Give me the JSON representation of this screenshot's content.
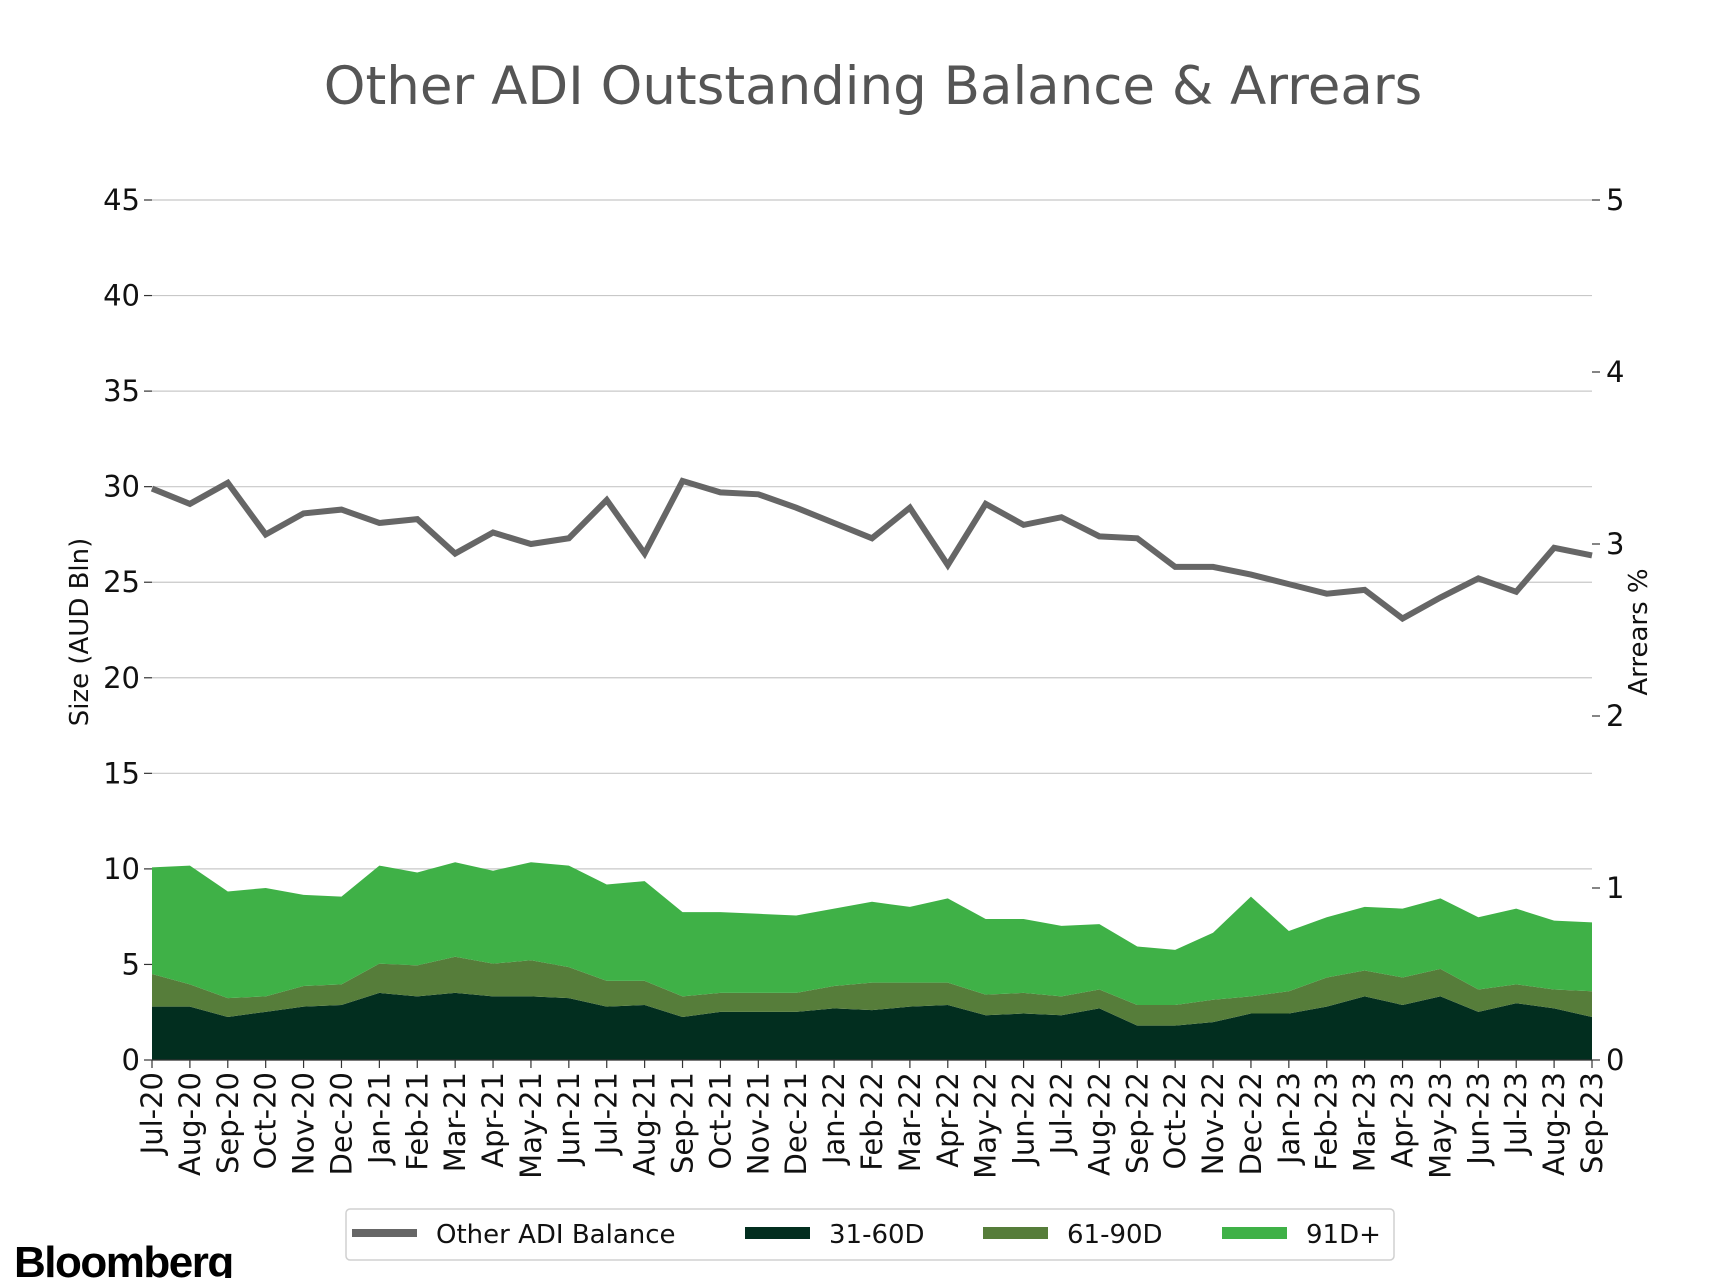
{
  "chart_data": {
    "type": "area",
    "title": "Other ADI Outstanding Balance & Arrears",
    "ylabel_left": "Size (AUD Bln)",
    "ylabel_right": "Arrears %",
    "ylim_left": [
      0,
      45
    ],
    "ylim_right": [
      0,
      5
    ],
    "yticks_left": [
      "0",
      "5",
      "10",
      "15",
      "20",
      "25",
      "30",
      "35",
      "40",
      "45"
    ],
    "yticks_right": [
      "0",
      "1",
      "2",
      "3",
      "4",
      "5"
    ],
    "grid": true,
    "legend_position": "bottom-center",
    "categories": [
      "Jul-20",
      "Aug-20",
      "Sep-20",
      "Oct-20",
      "Nov-20",
      "Dec-20",
      "Jan-21",
      "Feb-21",
      "Mar-21",
      "Apr-21",
      "May-21",
      "Jun-21",
      "Jul-21",
      "Aug-21",
      "Sep-21",
      "Oct-21",
      "Nov-21",
      "Dec-21",
      "Jan-22",
      "Feb-22",
      "Mar-22",
      "Apr-22",
      "May-22",
      "Jun-22",
      "Jul-22",
      "Aug-22",
      "Sep-22",
      "Oct-22",
      "Nov-22",
      "Dec-22",
      "Jan-23",
      "Feb-23",
      "Mar-23",
      "Apr-23",
      "May-23",
      "Jun-23",
      "Jul-23",
      "Aug-23",
      "Sep-23"
    ],
    "line_series": {
      "name": "Other ADI Balance",
      "axis": "left",
      "color": "#666666",
      "values": [
        29.9,
        29.1,
        30.2,
        27.5,
        28.6,
        28.8,
        28.1,
        28.3,
        26.5,
        27.6,
        27.0,
        27.3,
        29.3,
        26.5,
        30.3,
        29.7,
        29.6,
        28.9,
        28.1,
        27.3,
        28.9,
        25.9,
        29.1,
        28.0,
        28.4,
        27.4,
        27.3,
        25.8,
        25.8,
        25.4,
        24.9,
        24.4,
        24.6,
        23.1,
        24.2,
        25.2,
        24.5,
        26.8,
        26.4
      ]
    },
    "stacked_series": [
      {
        "name": "31-60D",
        "axis": "right",
        "color": "#022e1f",
        "values": [
          0.31,
          0.31,
          0.25,
          0.28,
          0.31,
          0.32,
          0.39,
          0.37,
          0.39,
          0.37,
          0.37,
          0.36,
          0.31,
          0.32,
          0.25,
          0.28,
          0.28,
          0.28,
          0.3,
          0.29,
          0.31,
          0.32,
          0.26,
          0.27,
          0.26,
          0.3,
          0.2,
          0.2,
          0.22,
          0.27,
          0.27,
          0.31,
          0.37,
          0.32,
          0.37,
          0.28,
          0.33,
          0.3,
          0.25
        ]
      },
      {
        "name": "61-90D",
        "axis": "right",
        "color": "#567d3a",
        "values": [
          0.19,
          0.13,
          0.11,
          0.09,
          0.12,
          0.12,
          0.17,
          0.18,
          0.21,
          0.19,
          0.21,
          0.18,
          0.15,
          0.14,
          0.12,
          0.11,
          0.11,
          0.11,
          0.13,
          0.16,
          0.14,
          0.13,
          0.12,
          0.12,
          0.11,
          0.11,
          0.12,
          0.12,
          0.13,
          0.1,
          0.13,
          0.17,
          0.15,
          0.16,
          0.16,
          0.13,
          0.11,
          0.11,
          0.15
        ]
      },
      {
        "name": "91D+",
        "axis": "right",
        "color": "#3fb147",
        "values": [
          0.62,
          0.69,
          0.62,
          0.63,
          0.53,
          0.51,
          0.57,
          0.54,
          0.55,
          0.54,
          0.57,
          0.59,
          0.56,
          0.58,
          0.49,
          0.47,
          0.46,
          0.45,
          0.45,
          0.47,
          0.44,
          0.49,
          0.44,
          0.43,
          0.41,
          0.38,
          0.34,
          0.32,
          0.39,
          0.58,
          0.35,
          0.35,
          0.37,
          0.4,
          0.41,
          0.42,
          0.44,
          0.4,
          0.4
        ]
      }
    ]
  },
  "branding": {
    "logo_text": "Bloomberg"
  }
}
